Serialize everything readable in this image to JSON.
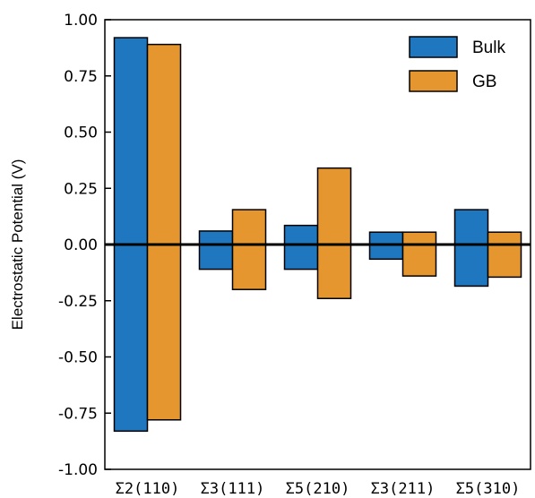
{
  "chart_data": {
    "type": "bar",
    "ylabel": "Electrostatic Potential (V)",
    "xlabel": "",
    "ylim": [
      -1.0,
      1.0
    ],
    "yticks": [
      "1.00",
      "0.75",
      "0.50",
      "0.25",
      "0.00",
      "-0.25",
      "-0.50",
      "-0.75",
      "-1.00"
    ],
    "ytick_values": [
      1.0,
      0.75,
      0.5,
      0.25,
      0.0,
      -0.25,
      -0.5,
      -0.75,
      -1.0
    ],
    "categories": [
      "Σ2(110)",
      "Σ3(111)",
      "Σ5(210)",
      "Σ3(211)",
      "Σ5(310)"
    ],
    "legend_position": "top-right",
    "grid": false,
    "series": [
      {
        "name": "Bulk",
        "color": "#1f77c0",
        "ranges": [
          [
            -0.83,
            0.92
          ],
          [
            -0.11,
            0.06
          ],
          [
            -0.11,
            0.085
          ],
          [
            -0.065,
            0.055
          ],
          [
            -0.185,
            0.155
          ]
        ]
      },
      {
        "name": "GB",
        "color": "#e6962e",
        "ranges": [
          [
            -0.78,
            0.89
          ],
          [
            -0.2,
            0.155
          ],
          [
            -0.24,
            0.34
          ],
          [
            -0.14,
            0.055
          ],
          [
            -0.145,
            0.055
          ]
        ]
      }
    ]
  }
}
